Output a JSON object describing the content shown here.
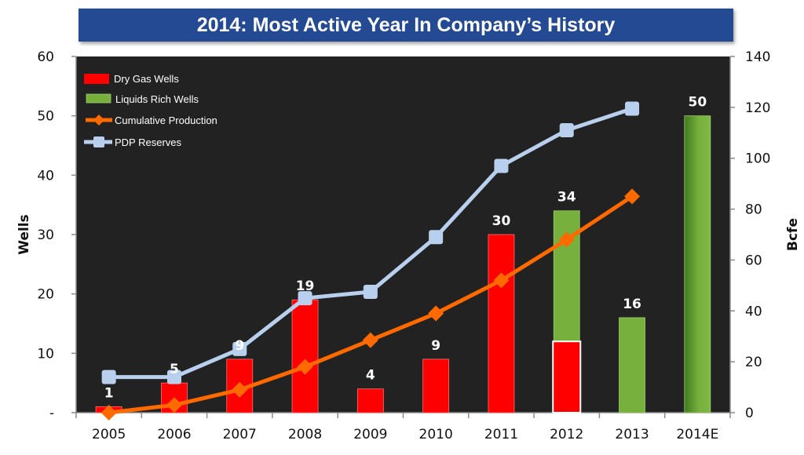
{
  "chart_data": {
    "type": "bar",
    "title": "2014: Most Active Year In Company’s History",
    "categories": [
      "2005",
      "2006",
      "2007",
      "2008",
      "2009",
      "2010",
      "2011",
      "2012",
      "2013",
      "2014E"
    ],
    "xlabel": "",
    "ylabel": "Wells",
    "y2label": "Bcfe",
    "ylim": [
      0,
      60
    ],
    "y2lim": [
      0,
      140
    ],
    "yticks": [
      "-",
      "10",
      "20",
      "30",
      "40",
      "50",
      "60"
    ],
    "y2ticks": [
      "0",
      "20",
      "40",
      "60",
      "80",
      "100",
      "120",
      "140"
    ],
    "grid": false,
    "legend_position": "top-left",
    "series": [
      {
        "name": "Dry Gas Wells",
        "kind": "bar",
        "axis": "left",
        "color": "#ff0000",
        "values": [
          1,
          5,
          9,
          19,
          4,
          9,
          30,
          12,
          0,
          0
        ]
      },
      {
        "name": "Liquids Rich Wells",
        "kind": "bar",
        "axis": "left",
        "color": "#77b03c",
        "values": [
          0,
          0,
          0,
          0,
          0,
          0,
          0,
          22,
          16,
          50
        ]
      },
      {
        "name": "Cumulative Production",
        "kind": "line",
        "axis": "right",
        "color": "#ff6a00",
        "marker": "diamond",
        "values": [
          0,
          3,
          9,
          18,
          28.5,
          39,
          52,
          68,
          85
        ]
      },
      {
        "name": "PDP Reserves",
        "kind": "line",
        "axis": "right",
        "color": "#b8d0ee",
        "marker": "square",
        "values": [
          14,
          14,
          25,
          45,
          47.5,
          69,
          97,
          111,
          119.5
        ]
      }
    ],
    "total_labels": [
      "1",
      "5",
      "9",
      "19",
      "4",
      "9",
      "30",
      "34",
      "16",
      "50"
    ]
  },
  "colors": {
    "banner": "#234a92",
    "plot_background": "#222222",
    "dry_gas": "#ff0000",
    "liquids": "#77b03c",
    "production": "#ff6a00",
    "reserves": "#b8d0ee"
  }
}
